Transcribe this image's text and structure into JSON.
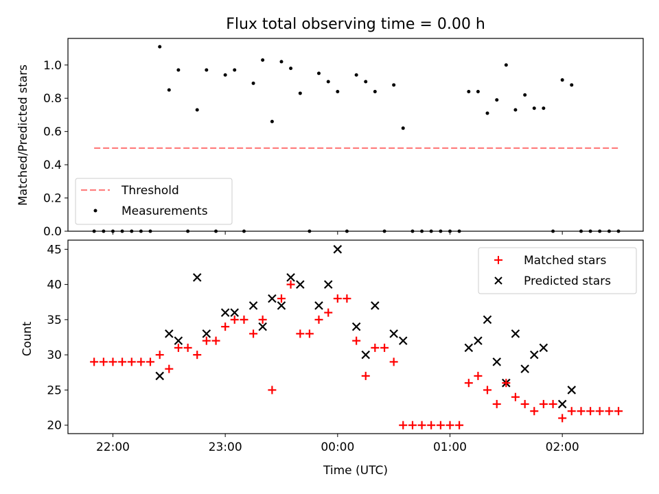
{
  "chart_data": [
    {
      "type": "scatter",
      "title": "Flux total observing time = 0.00 h",
      "xlabel": "",
      "ylabel": "Matched/Predicted stars",
      "ylim": [
        0,
        1.16
      ],
      "yticks": [
        0.0,
        0.2,
        0.4,
        0.6,
        0.8,
        1.0
      ],
      "yticklabels": [
        "0.0",
        "0.2",
        "0.4",
        "0.6",
        "0.8",
        "1.0"
      ],
      "legend_position": "lower-left",
      "threshold": {
        "name": "Threshold",
        "value": 0.5,
        "x_start": 21.833,
        "x_end": 26.5,
        "color": "#ff7f7f"
      },
      "series": [
        {
          "name": "Measurements",
          "color": "#000000",
          "x": [
            21.833,
            21.917,
            22.0,
            22.083,
            22.167,
            22.25,
            22.333,
            22.417,
            22.5,
            22.583,
            22.667,
            22.75,
            22.833,
            22.917,
            23.0,
            23.083,
            23.167,
            23.25,
            23.333,
            23.417,
            23.5,
            23.583,
            23.667,
            23.75,
            23.833,
            23.917,
            24.0,
            24.083,
            24.167,
            24.25,
            24.333,
            24.417,
            24.5,
            24.583,
            24.667,
            24.75,
            24.833,
            24.917,
            25.0,
            25.083,
            25.167,
            25.25,
            25.333,
            25.417,
            25.5,
            25.583,
            25.667,
            25.75,
            25.833,
            25.917,
            26.0,
            26.083,
            26.167,
            26.25,
            26.333,
            26.417,
            26.5
          ],
          "y": [
            0,
            0,
            0,
            0,
            0,
            0,
            0,
            1.11,
            0.85,
            0.97,
            0,
            0.73,
            0.97,
            0,
            0.94,
            0.97,
            0,
            0.89,
            1.03,
            0.66,
            1.02,
            0.98,
            0.83,
            0,
            0.95,
            0.9,
            0.84,
            0,
            0.94,
            0.9,
            0.84,
            0,
            0.88,
            0.62,
            0,
            0,
            0,
            0,
            0,
            0,
            0.84,
            0.84,
            0.71,
            0.79,
            1.0,
            0.73,
            0.82,
            0.74,
            0.74,
            0,
            0.91,
            0.88,
            0,
            0,
            0,
            0,
            0
          ]
        }
      ]
    },
    {
      "type": "scatter",
      "title": "",
      "xlabel": "Time (UTC)",
      "ylabel": "Count",
      "xlim": [
        21.6,
        26.72
      ],
      "ylim": [
        18.8,
        46.3
      ],
      "xticks": [
        22,
        23,
        24,
        25,
        26
      ],
      "xticklabels": [
        "22:00",
        "23:00",
        "00:00",
        "01:00",
        "02:00"
      ],
      "yticks": [
        20,
        25,
        30,
        35,
        40,
        45
      ],
      "yticklabels": [
        "20",
        "25",
        "30",
        "35",
        "40",
        "45"
      ],
      "legend_position": "top-right",
      "series": [
        {
          "name": "Matched stars",
          "marker": "plus",
          "color": "#ff0000",
          "x": [
            21.833,
            21.917,
            22.0,
            22.083,
            22.167,
            22.25,
            22.333,
            22.417,
            22.5,
            22.583,
            22.667,
            22.75,
            22.833,
            22.917,
            23.0,
            23.083,
            23.167,
            23.25,
            23.333,
            23.417,
            23.5,
            23.583,
            23.667,
            23.75,
            23.833,
            23.917,
            24.0,
            24.083,
            24.167,
            24.25,
            24.333,
            24.417,
            24.5,
            24.583,
            24.667,
            24.75,
            24.833,
            24.917,
            25.0,
            25.083,
            25.167,
            25.25,
            25.333,
            25.417,
            25.5,
            25.583,
            25.667,
            25.75,
            25.833,
            25.917,
            26.0,
            26.083,
            26.167,
            26.25,
            26.333,
            26.417,
            26.5
          ],
          "y": [
            29,
            29,
            29,
            29,
            29,
            29,
            29,
            30,
            28,
            31,
            31,
            30,
            32,
            32,
            34,
            35,
            35,
            33,
            35,
            25,
            38,
            40,
            33,
            33,
            35,
            36,
            38,
            38,
            32,
            27,
            31,
            31,
            29,
            20,
            20,
            20,
            20,
            20,
            20,
            20,
            26,
            27,
            25,
            23,
            26,
            24,
            23,
            22,
            23,
            23,
            21,
            22,
            22,
            22,
            22,
            22,
            22
          ]
        },
        {
          "name": "Predicted stars",
          "marker": "x",
          "color": "#000000",
          "x": [
            22.417,
            22.5,
            22.583,
            22.75,
            22.833,
            23.0,
            23.083,
            23.25,
            23.333,
            23.417,
            23.5,
            23.583,
            23.667,
            23.833,
            23.917,
            24.0,
            24.167,
            24.25,
            24.333,
            24.5,
            24.583,
            25.167,
            25.25,
            25.333,
            25.417,
            25.5,
            25.583,
            25.667,
            25.75,
            25.833,
            26.0,
            26.083
          ],
          "y": [
            27,
            33,
            32,
            41,
            33,
            36,
            36,
            37,
            34,
            38,
            37,
            41,
            40,
            37,
            40,
            45,
            34,
            30,
            37,
            33,
            32,
            31,
            32,
            35,
            29,
            26,
            33,
            28,
            30,
            31,
            23,
            25
          ]
        }
      ]
    }
  ]
}
